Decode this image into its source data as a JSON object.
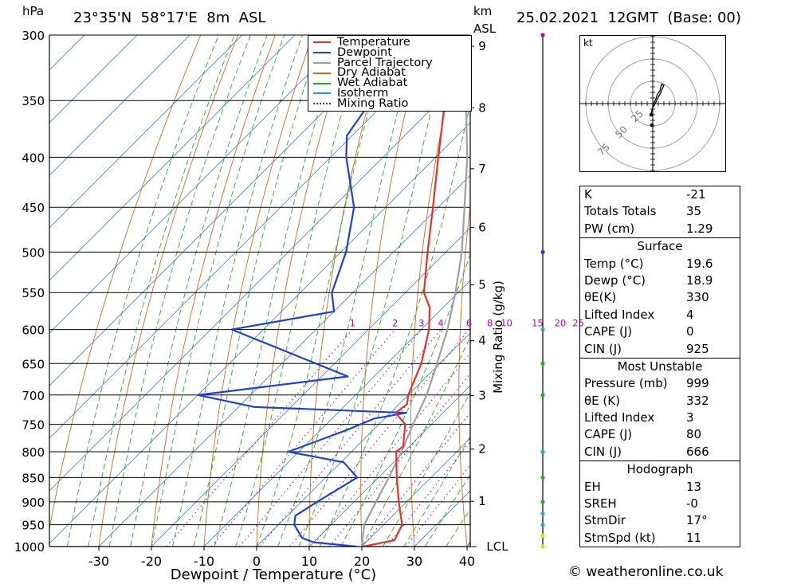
{
  "header": {
    "hpa_label": "hPa",
    "location": "23°35'N  58°17'E  8m  ASL",
    "km_label": "km",
    "asl_label": "ASL",
    "datetime": "25.02.2021  12GMT  (Base: 00)"
  },
  "chart_data": {
    "type": "skew-t",
    "xlabel": "Dewpoint / Temperature (°C)",
    "ylabel_right": "Mixing Ratio (g/kg)",
    "y_left_unit": "hPa",
    "x_ticks": [
      -30,
      -20,
      -10,
      0,
      10,
      20,
      30,
      40
    ],
    "pressure_levels": [
      300,
      350,
      400,
      450,
      500,
      550,
      600,
      650,
      700,
      750,
      800,
      850,
      900,
      950,
      1000
    ],
    "km_ticks": [
      {
        "km": 1,
        "p": 899
      },
      {
        "km": 2,
        "p": 795
      },
      {
        "km": 3,
        "p": 701
      },
      {
        "km": 4,
        "p": 616
      },
      {
        "km": 5,
        "p": 540
      },
      {
        "km": 6,
        "p": 472
      },
      {
        "km": 7,
        "p": 411
      },
      {
        "km": 8,
        "p": 356
      },
      {
        "km": 9,
        "p": 308
      }
    ],
    "lcl_label": "LCL",
    "lcl_pressure": 1000,
    "mixing_ratio_labels": [
      "1",
      "2",
      "3",
      "4",
      "6",
      "8",
      "10",
      "15",
      "20",
      "25"
    ],
    "mixing_ratio_values": [
      1,
      2,
      3,
      4,
      6,
      8,
      10,
      15,
      20,
      25
    ],
    "legend": [
      {
        "name": "Temperature",
        "color": "#e8302a",
        "style": "solid"
      },
      {
        "name": "Dewpoint",
        "color": "#1e3fe0",
        "style": "solid"
      },
      {
        "name": "Parcel Trajectory",
        "color": "#a0a0a0",
        "style": "solid"
      },
      {
        "name": "Dry Adiabat",
        "color": "#d2691e",
        "style": "solid"
      },
      {
        "name": "Wet Adiabat",
        "color": "#22b022",
        "style": "solid"
      },
      {
        "name": "Isotherm",
        "color": "#1e90ff",
        "style": "solid"
      },
      {
        "name": "Mixing Ratio",
        "color": "#c000a0",
        "style": "dotted"
      }
    ],
    "temperature": [
      {
        "p": 1000,
        "t": 20.3
      },
      {
        "p": 990,
        "t": 23.5
      },
      {
        "p": 985,
        "t": 25.0
      },
      {
        "p": 950,
        "t": 23.5
      },
      {
        "p": 900,
        "t": 18.5
      },
      {
        "p": 850,
        "t": 13.5
      },
      {
        "p": 800,
        "t": 8.5
      },
      {
        "p": 790,
        "t": 8.8
      },
      {
        "p": 750,
        "t": 5.0
      },
      {
        "p": 730,
        "t": 1.0
      },
      {
        "p": 715,
        "t": 1.5
      },
      {
        "p": 700,
        "t": 0.0
      },
      {
        "p": 650,
        "t": -3.5
      },
      {
        "p": 600,
        "t": -8.5
      },
      {
        "p": 570,
        "t": -12.5
      },
      {
        "p": 550,
        "t": -16.5
      },
      {
        "p": 500,
        "t": -23.5
      },
      {
        "p": 450,
        "t": -31.0
      },
      {
        "p": 400,
        "t": -39.5
      },
      {
        "p": 350,
        "t": -49.0
      },
      {
        "p": 300,
        "t": -57.5
      }
    ],
    "dewpoint": [
      {
        "p": 1000,
        "t": 19.0
      },
      {
        "p": 990,
        "t": 10.0
      },
      {
        "p": 980,
        "t": 7.0
      },
      {
        "p": 950,
        "t": 3.0
      },
      {
        "p": 930,
        "t": 1.5
      },
      {
        "p": 900,
        "t": 3.0
      },
      {
        "p": 850,
        "t": 6.0
      },
      {
        "p": 820,
        "t": 0.5
      },
      {
        "p": 800,
        "t": -12.0
      },
      {
        "p": 760,
        "t": -5.0
      },
      {
        "p": 740,
        "t": -2.0
      },
      {
        "p": 730,
        "t": 3.0
      },
      {
        "p": 720,
        "t": -27.0
      },
      {
        "p": 700,
        "t": -40.0
      },
      {
        "p": 670,
        "t": -15.0
      },
      {
        "p": 600,
        "t": -46.0
      },
      {
        "p": 575,
        "t": -30.0
      },
      {
        "p": 550,
        "t": -34.0
      },
      {
        "p": 500,
        "t": -39.0
      },
      {
        "p": 450,
        "t": -46.0
      },
      {
        "p": 400,
        "t": -57.0
      },
      {
        "p": 380,
        "t": -61.0
      },
      {
        "p": 350,
        "t": -63.0
      },
      {
        "p": 310,
        "t": -68.0
      },
      {
        "p": 300,
        "t": -78.0
      }
    ],
    "parcel": [
      {
        "p": 1000,
        "t": 20.0
      },
      {
        "p": 950,
        "t": 16.3
      },
      {
        "p": 900,
        "t": 14.2
      },
      {
        "p": 850,
        "t": 12.0
      },
      {
        "p": 800,
        "t": 9.5
      },
      {
        "p": 750,
        "t": 6.5
      },
      {
        "p": 700,
        "t": 3.5
      },
      {
        "p": 650,
        "t": -0.5
      },
      {
        "p": 600,
        "t": -5.0
      },
      {
        "p": 550,
        "t": -10.5
      },
      {
        "p": 500,
        "t": -17.0
      },
      {
        "p": 450,
        "t": -25.0
      },
      {
        "p": 400,
        "t": -34.0
      },
      {
        "p": 350,
        "t": -45.0
      },
      {
        "p": 300,
        "t": -57.0
      }
    ],
    "hodograph": {
      "unit_label": "kt",
      "ring_labels": [
        "25",
        "50",
        "75"
      ]
    }
  },
  "indices": {
    "top": [
      {
        "label": "K",
        "value": "-21"
      },
      {
        "label": "Totals Totals",
        "value": "35"
      },
      {
        "label": "PW (cm)",
        "value": "1.29"
      }
    ],
    "surface_title": "Surface",
    "surface": [
      {
        "label": "Temp (°C)",
        "value": "19.6"
      },
      {
        "label": "Dewp (°C)",
        "value": "18.9"
      },
      {
        "label": "θE(K)",
        "value": "330"
      },
      {
        "label": "Lifted Index",
        "value": "4"
      },
      {
        "label": "CAPE (J)",
        "value": "0"
      },
      {
        "label": "CIN (J)",
        "value": "925"
      }
    ],
    "mu_title": "Most Unstable",
    "mu": [
      {
        "label": "Pressure (mb)",
        "value": "999"
      },
      {
        "label": "θE (K)",
        "value": "332"
      },
      {
        "label": "Lifted Index",
        "value": "3"
      },
      {
        "label": "CAPE (J)",
        "value": "80"
      },
      {
        "label": "CIN (J)",
        "value": "666"
      }
    ],
    "hodo_title": "Hodograph",
    "hodo": [
      {
        "label": "EH",
        "value": "13"
      },
      {
        "label": "SREH",
        "value": "-0"
      },
      {
        "label": "StmDir",
        "value": "17°"
      },
      {
        "label": "StmSpd (kt)",
        "value": "11"
      }
    ]
  },
  "credit": "© weatheronline.co.uk"
}
